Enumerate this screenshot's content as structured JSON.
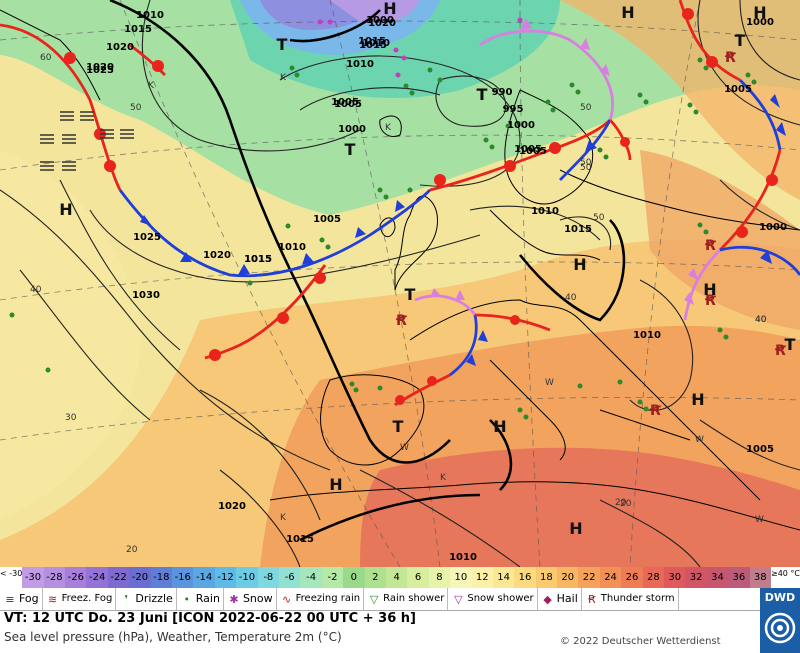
{
  "map": {
    "high_label": "H",
    "low_label": "T",
    "isobar_labels": [
      "1010",
      "1015",
      "1020",
      "1015",
      "1010",
      "1020",
      "1005",
      "1010",
      "1015",
      "1020",
      "1025",
      "1000",
      "1005",
      "990",
      "995",
      "1000",
      "1005",
      "1015",
      "1000",
      "1005",
      "1000",
      "1025",
      "1020",
      "1015",
      "1010",
      "1005",
      "1030",
      "1010",
      "1015",
      "1010",
      "1005",
      "1020",
      "1015",
      "1010",
      "1000",
      "1005"
    ],
    "temperature_labels": [
      "60",
      "50",
      "40",
      "30",
      "20",
      "20",
      "40",
      "50",
      "50",
      "50",
      "40",
      "50",
      "20",
      "40",
      "K",
      "K",
      "K",
      "K",
      "W",
      "W",
      "W",
      "K",
      "W"
    ]
  },
  "scale": {
    "values": [
      "-30",
      "-28",
      "-26",
      "-24",
      "-22",
      "-20",
      "-18",
      "-16",
      "-14",
      "-12",
      "-10",
      "-8",
      "-6",
      "-4",
      "-2",
      "0",
      "2",
      "4",
      "6",
      "8",
      "10",
      "12",
      "14",
      "16",
      "18",
      "20",
      "22",
      "24",
      "26",
      "28",
      "30",
      "32",
      "34",
      "36",
      "38"
    ],
    "colors": [
      "#c29ce6",
      "#b58fe0",
      "#a77fdb",
      "#9473d6",
      "#7f6ad0",
      "#6a6ed0",
      "#5f7fd6",
      "#5b93dd",
      "#5aa7e2",
      "#5fbbe5",
      "#6dcbe4",
      "#7fd8df",
      "#92e0d0",
      "#a6e6bd",
      "#b5e9a8",
      "#9bd98a",
      "#aee08f",
      "#c3e794",
      "#d6ee9e",
      "#e7f3aa",
      "#f6f6bb",
      "#fbf1a8",
      "#fbe794",
      "#fadb80",
      "#f9ca6f",
      "#f7b763",
      "#f5a35a",
      "#f29056",
      "#ee7c55",
      "#e86957",
      "#de5a5c",
      "#d25565",
      "#c6576f",
      "#bb5d7a",
      "#c07d8b"
    ],
    "lt_label": "< -30",
    "ge_label": "≥40 °C"
  },
  "legend": [
    {
      "name": "fog",
      "label": "Fog",
      "icon": "fog-icon",
      "glyph": "≡"
    },
    {
      "name": "freezing-fog",
      "label": "Freez. Fog",
      "icon": "freezing-fog-icon",
      "glyph": "≋"
    },
    {
      "name": "drizzle",
      "label": "Drizzle",
      "icon": "drizzle-icon",
      "glyph": "❜"
    },
    {
      "name": "rain",
      "label": "Rain",
      "icon": "rain-icon",
      "glyph": "•"
    },
    {
      "name": "snow",
      "label": "Snow",
      "icon": "snow-icon",
      "glyph": "✱"
    },
    {
      "name": "freezing-rain",
      "label": "Freezing rain",
      "icon": "freezing-rain-icon",
      "glyph": "∿"
    },
    {
      "name": "rain-shower",
      "label": "Rain shower",
      "icon": "rain-shower-icon",
      "glyph": "▽"
    },
    {
      "name": "snow-shower",
      "label": "Snow shower",
      "icon": "snow-shower-icon",
      "glyph": "▽"
    },
    {
      "name": "hail",
      "label": "Hail",
      "icon": "hail-icon",
      "glyph": "◆"
    },
    {
      "name": "thunderstorm",
      "label": "Thunder storm",
      "icon": "thunderstorm-icon",
      "glyph": "Ꞧ"
    }
  ],
  "header": {
    "valid_time": "VT: 12 UTC Do.  23 Juni [ICON 2022-06-22  00 UTC + 36 h]",
    "subtitle": "Sea level pressure (hPa), Weather, Temperature 2m (°C)",
    "copyright": "© 2022 Deutscher Wetterdienst",
    "logo": "DWD"
  },
  "colors": {
    "warm_front": "#e8241c",
    "cold_front": "#1f3fd8",
    "occlusion": "#d880e0",
    "isobar": "#222222"
  }
}
